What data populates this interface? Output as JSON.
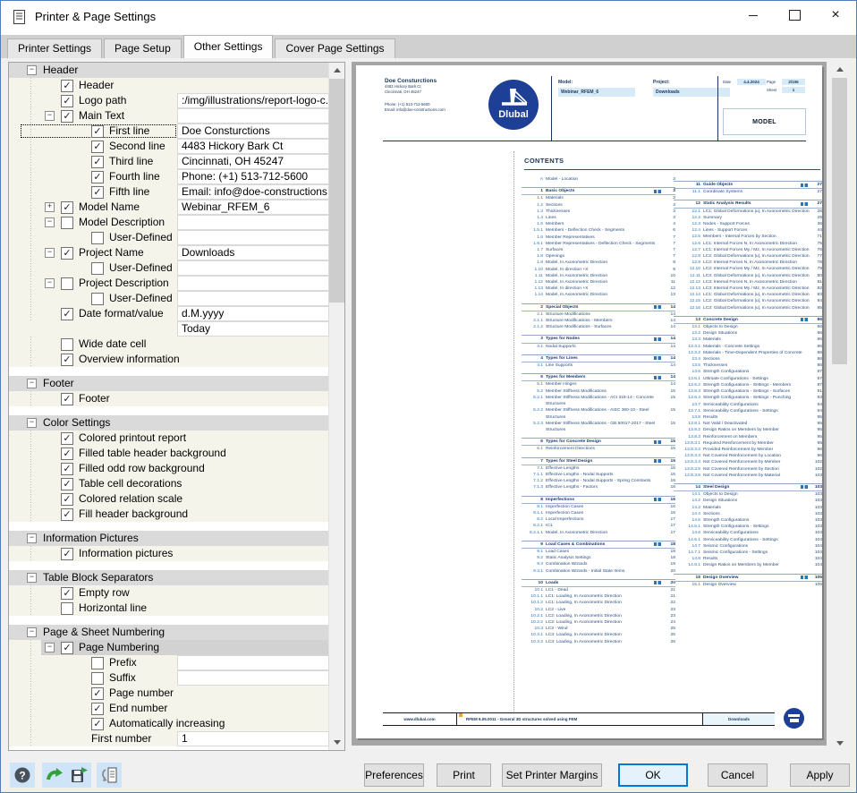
{
  "window": {
    "title": "Printer & Page Settings"
  },
  "tabs": [
    {
      "label": "Printer Settings",
      "active": false
    },
    {
      "label": "Page Setup",
      "active": false
    },
    {
      "label": "Other Settings",
      "active": true
    },
    {
      "label": "Cover Page Settings",
      "active": false
    }
  ],
  "colors": {
    "accent": "#0078d7",
    "highlight_blue": "#d6eaf8",
    "navy": "#17365d",
    "logo_blue": "#1e3f96",
    "orange_marker": "#f2a33c"
  },
  "toolbar_icons": [
    "help",
    "load-settings",
    "save-settings",
    "copy-settings"
  ],
  "action_buttons": {
    "preferences": "Preferences",
    "print": "Print",
    "set_printer_margins": "Set Printer Margins",
    "ok": "OK",
    "cancel": "Cancel",
    "apply": "Apply"
  },
  "tree": {
    "rows": [
      {
        "k": "s",
        "l": "Header"
      },
      {
        "k": "i",
        "lv": 1,
        "c": true,
        "l": "Header"
      },
      {
        "k": "i",
        "lv": 1,
        "c": true,
        "l": "Logo path",
        "v": ":/img/illustrations/report-logo-c...",
        "va": true
      },
      {
        "k": "i",
        "lv": 1,
        "c": true,
        "e": "-",
        "l": "Main Text",
        "va": true
      },
      {
        "k": "i",
        "lv": 2,
        "c": true,
        "l": "First line",
        "v": "Doe Consturctions",
        "va": true,
        "sel": true
      },
      {
        "k": "i",
        "lv": 2,
        "c": true,
        "l": "Second line",
        "v": "4483 Hickory Bark Ct",
        "va": true
      },
      {
        "k": "i",
        "lv": 2,
        "c": true,
        "l": "Third line",
        "v": "Cincinnati, OH 45247",
        "va": true
      },
      {
        "k": "i",
        "lv": 2,
        "c": true,
        "l": "Fourth line",
        "v": "Phone: (+1) 513-712-5600",
        "va": true
      },
      {
        "k": "i",
        "lv": 2,
        "c": true,
        "l": "Fifth line",
        "v": "Email: info@doe-constructions....",
        "va": true
      },
      {
        "k": "i",
        "lv": 1,
        "c": true,
        "e": "+",
        "l": "Model Name",
        "v": "Webinar_RFEM_6",
        "va": true
      },
      {
        "k": "i",
        "lv": 1,
        "c": false,
        "e": "-",
        "l": "Model Description",
        "va": true
      },
      {
        "k": "i",
        "lv": 2,
        "c": false,
        "l": "User-Defined",
        "va": true
      },
      {
        "k": "i",
        "lv": 1,
        "c": true,
        "e": "-",
        "l": "Project Name",
        "v": "Downloads",
        "va": true
      },
      {
        "k": "i",
        "lv": 2,
        "c": false,
        "l": "User-Defined",
        "va": true
      },
      {
        "k": "i",
        "lv": 1,
        "c": false,
        "e": "-",
        "l": "Project Description",
        "va": true
      },
      {
        "k": "i",
        "lv": 2,
        "c": false,
        "l": "User-Defined",
        "va": true
      },
      {
        "k": "i",
        "lv": 1,
        "c": true,
        "l": "Date format/value",
        "v": "d.M.yyyy",
        "va": true
      },
      {
        "k": "v",
        "v": "Today",
        "va": true
      },
      {
        "k": "i",
        "lv": 1,
        "c": false,
        "l": "Wide date cell"
      },
      {
        "k": "i",
        "lv": 1,
        "c": true,
        "l": "Overview information"
      },
      {
        "k": "g"
      },
      {
        "k": "s",
        "l": "Footer"
      },
      {
        "k": "i",
        "lv": 1,
        "c": true,
        "l": "Footer"
      },
      {
        "k": "g"
      },
      {
        "k": "s",
        "l": "Color Settings"
      },
      {
        "k": "i",
        "lv": 1,
        "c": true,
        "l": "Colored printout report"
      },
      {
        "k": "i",
        "lv": 1,
        "c": true,
        "l": "Filled table header background"
      },
      {
        "k": "i",
        "lv": 1,
        "c": true,
        "l": "Filled odd row background"
      },
      {
        "k": "i",
        "lv": 1,
        "c": true,
        "l": "Table cell decorations"
      },
      {
        "k": "i",
        "lv": 1,
        "c": true,
        "l": "Colored relation scale"
      },
      {
        "k": "i",
        "lv": 1,
        "c": true,
        "l": "Fill header background"
      },
      {
        "k": "g"
      },
      {
        "k": "s",
        "l": "Information Pictures"
      },
      {
        "k": "i",
        "lv": 1,
        "c": true,
        "l": "Information pictures"
      },
      {
        "k": "g"
      },
      {
        "k": "s",
        "l": "Table Block Separators"
      },
      {
        "k": "i",
        "lv": 1,
        "c": true,
        "l": "Empty row"
      },
      {
        "k": "i",
        "lv": 1,
        "c": false,
        "l": "Horizontal line"
      },
      {
        "k": "g"
      },
      {
        "k": "s",
        "l": "Page & Sheet Numbering"
      },
      {
        "k": "i",
        "lv": 1,
        "c": true,
        "e": "-",
        "l": "Page Numbering",
        "hl": true
      },
      {
        "k": "i",
        "lv": 2,
        "c": false,
        "l": "Prefix",
        "va": true
      },
      {
        "k": "i",
        "lv": 2,
        "c": false,
        "l": "Suffix",
        "va": true
      },
      {
        "k": "i",
        "lv": 2,
        "c": true,
        "l": "Page number"
      },
      {
        "k": "i",
        "lv": 2,
        "c": true,
        "l": "End number"
      },
      {
        "k": "i",
        "lv": 2,
        "c": true,
        "l": "Automatically increasing"
      },
      {
        "k": "i",
        "lv": 2,
        "l": "First number",
        "v": "1",
        "va": true
      }
    ]
  },
  "preview": {
    "header": {
      "company_name": "Doe Consturctions",
      "address1": "4483 Hickory Bark Ct",
      "address2": "Cincinnati, OH 45247",
      "phone": "Phone: (+1) 513-712-5600",
      "email": "Email: info@doe-constructions.com",
      "logo_text": "Dlubal",
      "model_label": "Model:",
      "model_value": "Webinar_RFEM_6",
      "project_label": "Project:",
      "project_value": "Downloads",
      "date_label": "Date",
      "date_value": "4.4.2024",
      "page_label": "Page",
      "page_value": "2/106",
      "sheet_label": "Sheet",
      "sheet_value": "1",
      "section_title": "MODEL"
    },
    "contents_title": "CONTENTS",
    "toc_left": [
      {
        "n": "A",
        "t": "Model - Location",
        "p": "3"
      },
      {
        "n": "1",
        "t": "Basic Objects",
        "p": "3",
        "ch": 1
      },
      {
        "n": "1.1",
        "t": "Materials",
        "p": "3"
      },
      {
        "n": "1.2",
        "t": "Sections",
        "p": "3"
      },
      {
        "n": "1.3",
        "t": "Thicknesses",
        "p": "3"
      },
      {
        "n": "1.4",
        "t": "Lines",
        "p": "3"
      },
      {
        "n": "1.5",
        "t": "Members",
        "p": "4"
      },
      {
        "n": "1.5.1",
        "t": "Members - Deflection Check - Segments",
        "p": "6"
      },
      {
        "n": "1.6",
        "t": "Member Representatives",
        "p": "7"
      },
      {
        "n": "1.6.1",
        "t": "Member Representatives - Deflection Check - Segments",
        "p": "7"
      },
      {
        "n": "1.7",
        "t": "Surfaces",
        "p": "7"
      },
      {
        "n": "1.8",
        "t": "Openings",
        "p": "7"
      },
      {
        "n": "1.9",
        "t": "Model, In Axonometric Direction",
        "p": "8"
      },
      {
        "n": "1.10",
        "t": "Model, In direction +X",
        "p": "9"
      },
      {
        "n": "1.11",
        "t": "Model, In Axonometric Direction",
        "p": "10"
      },
      {
        "n": "1.12",
        "t": "Model, In Axonometric Direction",
        "p": "11"
      },
      {
        "n": "1.13",
        "t": "Model, In direction +X",
        "p": "12"
      },
      {
        "n": "1.14",
        "t": "Model, In Axonometric Direction",
        "p": "13"
      },
      {
        "n": "2",
        "t": "Special Objects",
        "p": "14",
        "ch": 1
      },
      {
        "n": "2.1",
        "t": "Structure Modifications",
        "p": "14"
      },
      {
        "n": "2.1.1",
        "t": "Structure Modifications - Members",
        "p": "14"
      },
      {
        "n": "2.1.2",
        "t": "Structure Modifications - Surfaces",
        "p": "14"
      },
      {
        "n": "3",
        "t": "Types for Nodes",
        "p": "14",
        "ch": 1
      },
      {
        "n": "3.1",
        "t": "Nodal Supports",
        "p": "14"
      },
      {
        "n": "4",
        "t": "Types for Lines",
        "p": "14",
        "ch": 1
      },
      {
        "n": "4.1",
        "t": "Line Supports",
        "p": "14"
      },
      {
        "n": "5",
        "t": "Types for Members",
        "p": "14",
        "ch": 1
      },
      {
        "n": "5.1",
        "t": "Member Hinges",
        "p": "14"
      },
      {
        "n": "5.2",
        "t": "Member Stiffness Modifications",
        "p": "15"
      },
      {
        "n": "5.2.1",
        "t": "Member Stiffness Modifications - ACI 318-14 - Concrete Structures",
        "p": "15"
      },
      {
        "n": "5.2.2",
        "t": "Member Stiffness Modifications - AISC 360-10 - Steel Structures",
        "p": "15"
      },
      {
        "n": "5.2.3",
        "t": "Member Stiffness Modifications - GB 50017-2017 - Steel Structures",
        "p": "15"
      },
      {
        "n": "6",
        "t": "Types for Concrete Design",
        "p": "15",
        "ch": 1
      },
      {
        "n": "6.1",
        "t": "Reinforcement Directions",
        "p": "15"
      },
      {
        "n": "7",
        "t": "Types for Steel Design",
        "p": "15",
        "ch": 1
      },
      {
        "n": "7.1",
        "t": "Effective Lengths",
        "p": "15"
      },
      {
        "n": "7.1.1",
        "t": "Effective Lengths - Nodal Supports",
        "p": "15"
      },
      {
        "n": "7.1.2",
        "t": "Effective Lengths - Nodal Supports - Spring Constants",
        "p": "16"
      },
      {
        "n": "7.1.3",
        "t": "Effective Lengths - Factors",
        "p": "16"
      },
      {
        "n": "8",
        "t": "Imperfections",
        "p": "16",
        "ch": 1
      },
      {
        "n": "8.1",
        "t": "Imperfection Cases",
        "p": "16"
      },
      {
        "n": "8.1.1",
        "t": "Imperfection Cases",
        "p": "16"
      },
      {
        "n": "8.2",
        "t": "Local Imperfections",
        "p": "17"
      },
      {
        "n": "8.2.1",
        "t": "IC1",
        "p": "17"
      },
      {
        "n": "8.2.1.1",
        "t": "Model, In Axonometric Direction",
        "p": "17"
      },
      {
        "n": "9",
        "t": "Load Cases & Combinations",
        "p": "18",
        "ch": 1
      },
      {
        "n": "9.1",
        "t": "Load Cases",
        "p": "18"
      },
      {
        "n": "9.2",
        "t": "Static Analysis Settings",
        "p": "18"
      },
      {
        "n": "9.3",
        "t": "Combination Wizards",
        "p": "19"
      },
      {
        "n": "9.3.1",
        "t": "Combination Wizards - Initial State Items",
        "p": "20"
      },
      {
        "n": "10",
        "t": "Loads",
        "p": "20",
        "ch": 1
      },
      {
        "n": "10.1",
        "t": "LC1 - Dead",
        "p": "21"
      },
      {
        "n": "10.1.1",
        "t": "LC1: Loading, In Axonometric Direction",
        "p": "21"
      },
      {
        "n": "10.1.2",
        "t": "LC1: Loading, In Axonometric Direction",
        "p": "22"
      },
      {
        "n": "10.2",
        "t": "LC2 - Live",
        "p": "23"
      },
      {
        "n": "10.2.1",
        "t": "LC2: Loading, In Axonometric Direction",
        "p": "23"
      },
      {
        "n": "10.2.2",
        "t": "LC2: Loading, In Axonometric Direction",
        "p": "24"
      },
      {
        "n": "10.3",
        "t": "LC3 - Wind",
        "p": "25"
      },
      {
        "n": "10.3.1",
        "t": "LC3: Loading, In Axonometric Direction",
        "p": "25"
      },
      {
        "n": "10.3.2",
        "t": "LC3: Loading, In Axonometric Direction",
        "p": "26"
      }
    ],
    "toc_right": [
      {
        "n": "11",
        "t": "Guide Objects",
        "p": "27",
        "ch": 1
      },
      {
        "n": "11.1",
        "t": "Coordinate Systems",
        "p": "27"
      },
      {
        "n": "12",
        "t": "Static Analysis Results",
        "p": "27",
        "ch": 1
      },
      {
        "n": "12.1",
        "t": "LC1: Global Deformations |u|, In Axonometric Direction",
        "p": "28"
      },
      {
        "n": "12.2",
        "t": "Summary",
        "p": "29"
      },
      {
        "n": "12.3",
        "t": "Nodes - Support Forces",
        "p": "36"
      },
      {
        "n": "12.4",
        "t": "Lines - Support Forces",
        "p": "44"
      },
      {
        "n": "12.5",
        "t": "Members - Internal Forces by Section",
        "p": "71"
      },
      {
        "n": "12.6",
        "t": "LC1: Internal Forces N, In Axonometric Direction",
        "p": "75"
      },
      {
        "n": "12.7",
        "t": "LC1: Internal Forces My / Mz, In Axonometric Direction",
        "p": "76"
      },
      {
        "n": "12.8",
        "t": "LC2: Global Deformations |u|, In Axonometric Direction",
        "p": "77"
      },
      {
        "n": "12.9",
        "t": "LC2: Internal Forces N, In Axonometric Direction",
        "p": "78"
      },
      {
        "n": "12.10",
        "t": "LC2: Internal Forces My / Mz, In Axonometric Direction",
        "p": "79"
      },
      {
        "n": "12.11",
        "t": "LC3: Global Deformations |u|, In Axonometric Direction",
        "p": "80"
      },
      {
        "n": "12.12",
        "t": "LC3: Internal Forces N, In Axonometric Direction",
        "p": "81"
      },
      {
        "n": "12.13",
        "t": "LC3: Internal Forces My / Mz, In Axonometric Direction",
        "p": "82"
      },
      {
        "n": "12.14",
        "t": "LC1: Global Deformations |u|, In Axonometric Direction",
        "p": "83"
      },
      {
        "n": "12.15",
        "t": "LC2: Global Deformations |u|, In Axonometric Direction",
        "p": "84"
      },
      {
        "n": "12.16",
        "t": "LC3: Global Deformations |u|, In Axonometric Direction",
        "p": "85"
      },
      {
        "n": "13",
        "t": "Concrete Design",
        "p": "86",
        "ch": 1
      },
      {
        "n": "13.1",
        "t": "Objects to Design",
        "p": "86"
      },
      {
        "n": "13.2",
        "t": "Design Situations",
        "p": "86"
      },
      {
        "n": "13.3",
        "t": "Materials",
        "p": "86"
      },
      {
        "n": "13.3.1",
        "t": "Materials - Concrete Settings",
        "p": "86"
      },
      {
        "n": "13.3.2",
        "t": "Materials - Time-Dependent Properties of Concrete",
        "p": "86"
      },
      {
        "n": "13.4",
        "t": "Sections",
        "p": "86"
      },
      {
        "n": "13.5",
        "t": "Thicknesses",
        "p": "86"
      },
      {
        "n": "13.6",
        "t": "Strength Configurations",
        "p": "87"
      },
      {
        "n": "13.6.1",
        "t": "Ultimate Configurations - Settings",
        "p": "87"
      },
      {
        "n": "13.6.2",
        "t": "Strength Configurations - Settings - Members",
        "p": "87"
      },
      {
        "n": "13.6.3",
        "t": "Strength Configurations - Settings - Surfaces",
        "p": "91"
      },
      {
        "n": "13.6.4",
        "t": "Strength Configurations - Settings - Punching",
        "p": "93"
      },
      {
        "n": "13.7",
        "t": "Serviceability Configurations",
        "p": "94"
      },
      {
        "n": "13.7.1",
        "t": "Serviceability Configurations - Settings",
        "p": "94"
      },
      {
        "n": "13.8",
        "t": "Results",
        "p": "95"
      },
      {
        "n": "13.8.1",
        "t": "Not Valid / Deactivated",
        "p": "95"
      },
      {
        "n": "13.8.2",
        "t": "Design Ratios on Members by Member",
        "p": "95"
      },
      {
        "n": "13.8.3",
        "t": "Reinforcement on Members",
        "p": "95"
      },
      {
        "n": "13.8.3.1",
        "t": "Required Reinforcement by Member",
        "p": "95"
      },
      {
        "n": "13.8.3.2",
        "t": "Provided Reinforcement by Member",
        "p": "96"
      },
      {
        "n": "13.8.3.3",
        "t": "Not Covered Reinforcement by Location",
        "p": "96"
      },
      {
        "n": "13.8.3.4",
        "t": "Not Covered Reinforcement by Member",
        "p": "102"
      },
      {
        "n": "13.8.3.5",
        "t": "Not Covered Reinforcement by Section",
        "p": "102"
      },
      {
        "n": "13.8.3.6",
        "t": "Not Covered Reinforcement by Material",
        "p": "103"
      },
      {
        "n": "14",
        "t": "Steel Design",
        "p": "103",
        "ch": 1
      },
      {
        "n": "14.1",
        "t": "Objects to Design",
        "p": "103"
      },
      {
        "n": "14.2",
        "t": "Design Situations",
        "p": "103"
      },
      {
        "n": "14.3",
        "t": "Materials",
        "p": "103"
      },
      {
        "n": "14.4",
        "t": "Sections",
        "p": "103"
      },
      {
        "n": "14.5",
        "t": "Strength Configurations",
        "p": "103"
      },
      {
        "n": "14.5.1",
        "t": "Strength Configurations - Settings",
        "p": "103"
      },
      {
        "n": "14.6",
        "t": "Serviceability Configurations",
        "p": "104"
      },
      {
        "n": "14.6.1",
        "t": "Serviceability Configurations - Settings",
        "p": "104"
      },
      {
        "n": "14.7",
        "t": "Seismic Configurations",
        "p": "104"
      },
      {
        "n": "14.7.1",
        "t": "Seismic Configurations - Settings",
        "p": "104"
      },
      {
        "n": "14.8",
        "t": "Results",
        "p": "104"
      },
      {
        "n": "14.8.1",
        "t": "Design Ratios on Members by Member",
        "p": "104"
      },
      {
        "n": "15",
        "t": "Design Overview",
        "p": "105",
        "ch": 1
      },
      {
        "n": "15.1",
        "t": "Design Overview",
        "p": "105"
      }
    ],
    "footer": {
      "website": "www.dlubal.com",
      "program": "RFEM 6.05.0011 - General 3D structures solved using FEM",
      "project": "Downloads"
    }
  }
}
